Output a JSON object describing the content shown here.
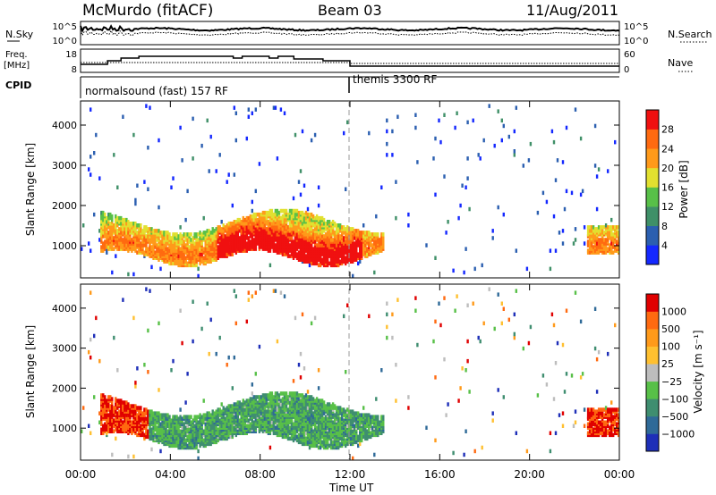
{
  "header": {
    "station": "McMurdo (fitACF)",
    "beam": "Beam 03",
    "date": "11/Aug/2011"
  },
  "panels": {
    "nsky_label": "N.Sky",
    "nsky_ticks": [
      "10^5",
      "10^0"
    ],
    "nsearch_label": "N.Search",
    "nsearch_ticks": [
      "10^5",
      "10^0"
    ],
    "freq_label": "Freq.",
    "freq_unit": "[MHz]",
    "freq_ticks": [
      "18",
      "8"
    ],
    "nave_label": "Nave",
    "nave_ticks": [
      "60",
      "0"
    ],
    "cpid_label": "CPID",
    "cpid_modes": [
      "normalsound (fast) 157 RF",
      "themis 3300 RF"
    ]
  },
  "chart_data": [
    {
      "type": "heatmap",
      "name": "power",
      "ylabel": "Slant Range [km]",
      "yticks": [
        1000,
        2000,
        3000,
        4000
      ],
      "ylim": [
        200,
        4600
      ],
      "xlim": [
        0,
        24
      ],
      "colorbar_label": "Power [dB]",
      "colorbar_ticks": [
        "4",
        "8",
        "12",
        "16",
        "20",
        "24",
        "28"
      ],
      "colorbar_colors": [
        "#1428ff",
        "#2b5fb0",
        "#3f9068",
        "#58c048",
        "#e2e030",
        "#ff9a1a",
        "#ff6a10",
        "#f01010"
      ]
    },
    {
      "type": "heatmap",
      "name": "velocity",
      "ylabel": "Slant Range [km]",
      "yticks": [
        1000,
        2000,
        3000,
        4000
      ],
      "ylim": [
        200,
        4600
      ],
      "xlim": [
        0,
        24
      ],
      "colorbar_label": "Velocity [m s⁻¹]",
      "colorbar_ticks": [
        "1000",
        "500",
        "100",
        "25",
        "−25",
        "−100",
        "−500",
        "−1000"
      ],
      "colorbar_colors": [
        "#1e2fb8",
        "#2f6a98",
        "#3f8e70",
        "#58c048",
        "#bdbdbd",
        "#ffc030",
        "#ff9a1a",
        "#ff6a10",
        "#e00000"
      ]
    }
  ],
  "xaxis": {
    "label": "Time UT",
    "ticks": [
      "00:00",
      "04:00",
      "08:00",
      "12:00",
      "16:00",
      "20:00",
      "00:00"
    ]
  }
}
